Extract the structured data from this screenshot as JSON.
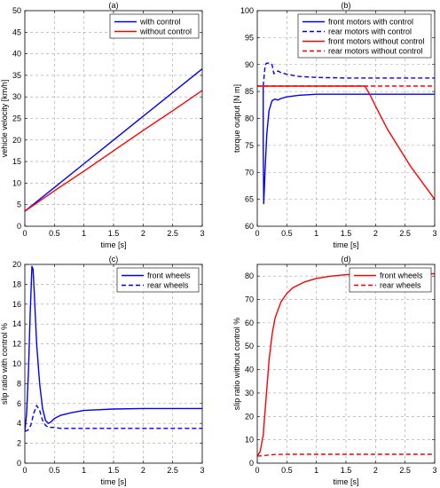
{
  "chart_data": [
    {
      "type": "line",
      "title": "(a)",
      "xlabel": "time [s]",
      "ylabel": "vehicle velocity [km/h]",
      "xlim": [
        0,
        3
      ],
      "ylim": [
        0,
        50
      ],
      "xticks": [
        0,
        0.5,
        1,
        1.5,
        2,
        2.5,
        3
      ],
      "yticks": [
        0,
        5,
        10,
        15,
        20,
        25,
        30,
        35,
        40,
        45,
        50
      ],
      "xtick_labels": [
        "0",
        "0.5",
        "1",
        "1.5",
        "2",
        "2.5",
        "3"
      ],
      "ytick_labels": [
        "0",
        "5",
        "10",
        "15",
        "20",
        "25",
        "30",
        "35",
        "40",
        "45",
        "50"
      ],
      "grid": true,
      "legend_position": "top-right",
      "series": [
        {
          "name": "with control",
          "color": "#0000ff",
          "dash": "solid",
          "x": [
            0,
            0.5,
            1,
            1.5,
            2,
            2.5,
            3
          ],
          "y": [
            3.5,
            9.0,
            14.5,
            20.0,
            25.5,
            31.0,
            36.5
          ]
        },
        {
          "name": "without control",
          "color": "#ff0000",
          "dash": "solid",
          "x": [
            0,
            0.5,
            1,
            1.5,
            2,
            2.5,
            3
          ],
          "y": [
            3.5,
            8.2,
            12.8,
            17.5,
            22.2,
            26.8,
            31.5
          ]
        }
      ]
    },
    {
      "type": "line",
      "title": "(b)",
      "xlabel": "time [s]",
      "ylabel": "torque output [N m]",
      "xlim": [
        0,
        3
      ],
      "ylim": [
        60,
        100
      ],
      "xticks": [
        0,
        0.5,
        1,
        1.5,
        2,
        2.5,
        3
      ],
      "yticks": [
        60,
        65,
        70,
        75,
        80,
        85,
        90,
        95,
        100
      ],
      "xtick_labels": [
        "0",
        "0.5",
        "1",
        "1.5",
        "2",
        "2.5",
        "3"
      ],
      "ytick_labels": [
        "60",
        "65",
        "70",
        "75",
        "80",
        "85",
        "90",
        "95",
        "100"
      ],
      "grid": true,
      "legend_position": "top-right",
      "series": [
        {
          "name": "front motors with control",
          "color": "#0000ff",
          "dash": "solid",
          "x": [
            0.1,
            0.1,
            0.11,
            0.13,
            0.16,
            0.2,
            0.25,
            0.3,
            0.35,
            0.4,
            0.5,
            0.7,
            1.0,
            1.5,
            2.0,
            2.5,
            3.0
          ],
          "y": [
            86.0,
            75.0,
            64.2,
            70.0,
            77.0,
            81.5,
            83.3,
            83.6,
            83.4,
            83.7,
            84.0,
            84.3,
            84.5,
            84.5,
            84.5,
            84.5,
            84.5
          ]
        },
        {
          "name": "rear motors with control",
          "color": "#0000ff",
          "dash": "dashed",
          "x": [
            0.1,
            0.13,
            0.15,
            0.2,
            0.25,
            0.28,
            0.3,
            0.35,
            0.4,
            0.5,
            0.7,
            1.0,
            1.5,
            2.0,
            2.5,
            3.0
          ],
          "y": [
            86.0,
            89.5,
            90.2,
            90.3,
            90.0,
            88.3,
            88.5,
            88.8,
            88.5,
            88.2,
            87.8,
            87.6,
            87.5,
            87.5,
            87.5,
            87.5
          ]
        },
        {
          "name": "front motors without control",
          "color": "#ff0000",
          "dash": "solid",
          "x": [
            0,
            0.1,
            0.5,
            1.0,
            1.5,
            1.82,
            1.9,
            2.0,
            2.2,
            2.4,
            2.6,
            2.8,
            3.0
          ],
          "y": [
            86.0,
            86.0,
            86.0,
            86.0,
            86.0,
            86.0,
            84.5,
            82.3,
            78.0,
            74.5,
            71.0,
            68.0,
            65.0
          ]
        },
        {
          "name": "rear motors without control",
          "color": "#ff0000",
          "dash": "dashed",
          "x": [
            0,
            0.5,
            1.0,
            1.5,
            2.0,
            2.5,
            3.0
          ],
          "y": [
            86.0,
            86.0,
            86.0,
            86.0,
            86.0,
            86.0,
            86.0
          ]
        }
      ]
    },
    {
      "type": "line",
      "title": "(c)",
      "xlabel": "time [s]",
      "ylabel": "slip ratio with control %",
      "xlim": [
        0,
        3
      ],
      "ylim": [
        0,
        20
      ],
      "xticks": [
        0,
        0.5,
        1,
        1.5,
        2,
        2.5,
        3
      ],
      "yticks": [
        0,
        2,
        4,
        6,
        8,
        10,
        12,
        14,
        16,
        18,
        20
      ],
      "xtick_labels": [
        "0",
        "0.5",
        "1",
        "1.5",
        "2",
        "2.5",
        "3"
      ],
      "ytick_labels": [
        "0",
        "2",
        "4",
        "6",
        "8",
        "10",
        "12",
        "14",
        "16",
        "18",
        "20"
      ],
      "grid": true,
      "legend_position": "top-right",
      "series": [
        {
          "name": "front wheels",
          "color": "#0000ff",
          "dash": "solid",
          "x": [
            0,
            0.03,
            0.06,
            0.09,
            0.12,
            0.14,
            0.16,
            0.2,
            0.25,
            0.3,
            0.35,
            0.4,
            0.45,
            0.5,
            0.6,
            0.8,
            1.0,
            1.5,
            2.0,
            2.5,
            3.0
          ],
          "y": [
            3.2,
            5.0,
            9.0,
            15.0,
            19.8,
            19.5,
            17.0,
            12.0,
            8.0,
            5.5,
            4.3,
            4.0,
            4.2,
            4.5,
            4.8,
            5.1,
            5.3,
            5.45,
            5.5,
            5.5,
            5.5
          ]
        },
        {
          "name": "rear wheels",
          "color": "#0000ff",
          "dash": "dashed",
          "x": [
            0,
            0.05,
            0.1,
            0.15,
            0.2,
            0.25,
            0.3,
            0.35,
            0.4,
            0.5,
            0.6,
            0.8,
            1.0,
            1.5,
            2.0,
            2.5,
            3.0
          ],
          "y": [
            3.2,
            3.3,
            3.8,
            5.0,
            5.8,
            5.3,
            4.3,
            3.8,
            3.6,
            3.6,
            3.5,
            3.5,
            3.5,
            3.5,
            3.5,
            3.5,
            3.5
          ]
        }
      ]
    },
    {
      "type": "line",
      "title": "(d)",
      "xlabel": "time [s]",
      "ylabel": "slip ratio without control %",
      "xlim": [
        0,
        3
      ],
      "ylim": [
        0,
        85
      ],
      "xticks": [
        0,
        0.5,
        1,
        1.5,
        2,
        2.5,
        3
      ],
      "yticks": [
        0,
        10,
        20,
        30,
        40,
        50,
        60,
        70,
        80
      ],
      "xtick_labels": [
        "0",
        "0.5",
        "1",
        "1.5",
        "2",
        "2.5",
        "3"
      ],
      "ytick_labels": [
        "0",
        "10",
        "20",
        "30",
        "40",
        "50",
        "60",
        "70",
        "80"
      ],
      "grid": true,
      "legend_position": "top-right",
      "series": [
        {
          "name": "front wheels",
          "color": "#ff0000",
          "dash": "solid",
          "x": [
            0,
            0.05,
            0.1,
            0.15,
            0.2,
            0.25,
            0.3,
            0.4,
            0.5,
            0.6,
            0.8,
            1.0,
            1.25,
            1.5,
            2.0,
            2.5,
            3.0
          ],
          "y": [
            3.0,
            5.0,
            12.0,
            28.0,
            44.0,
            55.0,
            62.0,
            69.0,
            72.5,
            75.0,
            77.5,
            79.0,
            80.0,
            80.6,
            81.0,
            81.0,
            81.0
          ]
        },
        {
          "name": "rear wheels",
          "color": "#ff0000",
          "dash": "dashed",
          "x": [
            0,
            0.1,
            0.2,
            0.3,
            0.5,
            1.0,
            1.5,
            2.0,
            2.5,
            3.0
          ],
          "y": [
            3.0,
            3.2,
            3.5,
            3.7,
            3.8,
            3.8,
            3.8,
            3.8,
            3.8,
            3.8
          ]
        }
      ]
    }
  ]
}
